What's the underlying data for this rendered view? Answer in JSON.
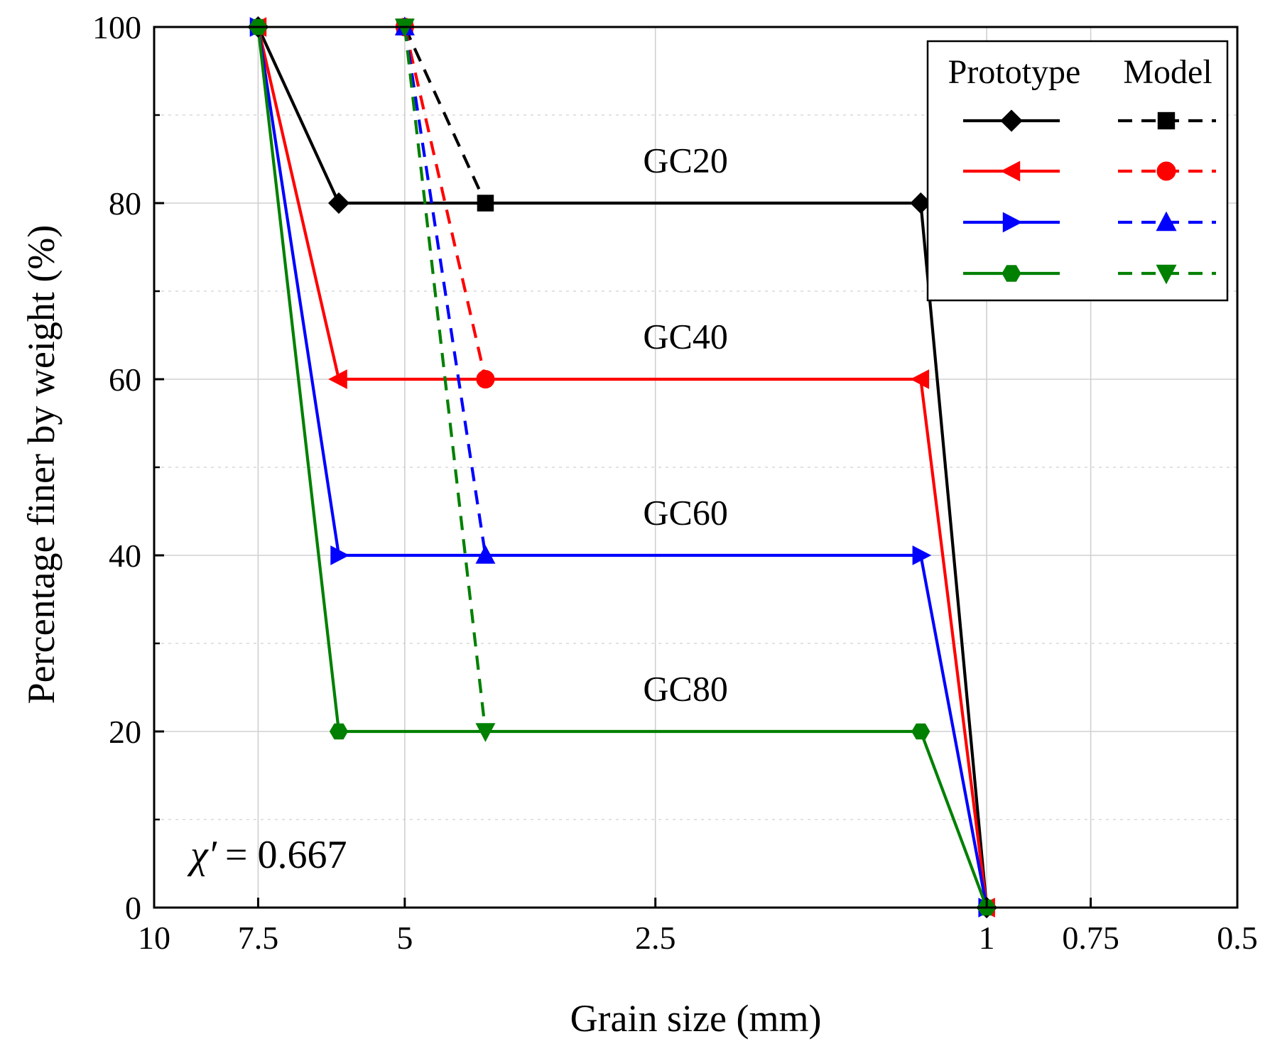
{
  "chart_data": {
    "type": "line",
    "xscale": "log",
    "xreversed": true,
    "xlim": [
      10,
      0.5
    ],
    "ylim": [
      0,
      100
    ],
    "xlabel": "Grain size (mm)",
    "ylabel": "Percentage finer by weight (%)",
    "xticks": [
      {
        "value": 10,
        "label": "10"
      },
      {
        "value": 7.5,
        "label": "7.5"
      },
      {
        "value": 5,
        "label": "5"
      },
      {
        "value": 2.5,
        "label": "2.5"
      },
      {
        "value": 1,
        "label": "1"
      },
      {
        "value": 0.75,
        "label": "0.75"
      },
      {
        "value": 0.5,
        "label": "0.5"
      }
    ],
    "yticks": [
      {
        "value": 0,
        "label": "0"
      },
      {
        "value": 20,
        "label": "20"
      },
      {
        "value": 40,
        "label": "40"
      },
      {
        "value": 60,
        "label": "60"
      },
      {
        "value": 80,
        "label": "80"
      },
      {
        "value": 100,
        "label": "100"
      }
    ],
    "yminor": [
      10,
      30,
      50,
      70,
      90
    ],
    "grid": true,
    "legend": {
      "position": "top-right",
      "headers": [
        "Prototype",
        "Model"
      ]
    },
    "annotation": {
      "symbol": "χ′",
      "text": "= 0.667"
    },
    "curve_labels": [
      {
        "text": "GC20",
        "x": 2.3,
        "y": 83.5
      },
      {
        "text": "GC40",
        "x": 2.3,
        "y": 63.5
      },
      {
        "text": "GC60",
        "x": 2.3,
        "y": 43.5
      },
      {
        "text": "GC80",
        "x": 2.3,
        "y": 23.5
      }
    ],
    "series": [
      {
        "name": "GC20 Prototype",
        "group": "Prototype",
        "color": "#000000",
        "dash": false,
        "marker": "diamond",
        "points": [
          [
            7.5,
            100
          ],
          [
            6.0,
            80
          ],
          [
            1.2,
            80
          ],
          [
            1.0,
            0
          ]
        ]
      },
      {
        "name": "GC40 Prototype",
        "group": "Prototype",
        "color": "#ff0000",
        "dash": false,
        "marker": "triangle-left",
        "points": [
          [
            7.5,
            100
          ],
          [
            6.0,
            60
          ],
          [
            1.2,
            60
          ],
          [
            1.0,
            0
          ]
        ]
      },
      {
        "name": "GC60 Prototype",
        "group": "Prototype",
        "color": "#0000ff",
        "dash": false,
        "marker": "triangle-right",
        "points": [
          [
            7.5,
            100
          ],
          [
            6.0,
            40
          ],
          [
            1.2,
            40
          ],
          [
            1.0,
            0
          ]
        ]
      },
      {
        "name": "GC80 Prototype",
        "group": "Prototype",
        "color": "#008000",
        "dash": false,
        "marker": "hexagon",
        "points": [
          [
            7.5,
            100
          ],
          [
            6.0,
            20
          ],
          [
            1.2,
            20
          ],
          [
            1.0,
            0
          ]
        ]
      },
      {
        "name": "GC20 Model",
        "group": "Model",
        "color": "#000000",
        "dash": true,
        "marker": "square",
        "points": [
          [
            5.0,
            100
          ],
          [
            4.0,
            80
          ]
        ]
      },
      {
        "name": "GC40 Model",
        "group": "Model",
        "color": "#ff0000",
        "dash": true,
        "marker": "circle",
        "points": [
          [
            5.0,
            100
          ],
          [
            4.0,
            60
          ]
        ]
      },
      {
        "name": "GC60 Model",
        "group": "Model",
        "color": "#0000ff",
        "dash": true,
        "marker": "triangle-up",
        "points": [
          [
            5.0,
            100
          ],
          [
            4.0,
            40
          ]
        ]
      },
      {
        "name": "GC80 Model",
        "group": "Model",
        "color": "#008000",
        "dash": true,
        "marker": "triangle-down",
        "points": [
          [
            5.0,
            100
          ],
          [
            4.0,
            20
          ]
        ]
      }
    ]
  }
}
